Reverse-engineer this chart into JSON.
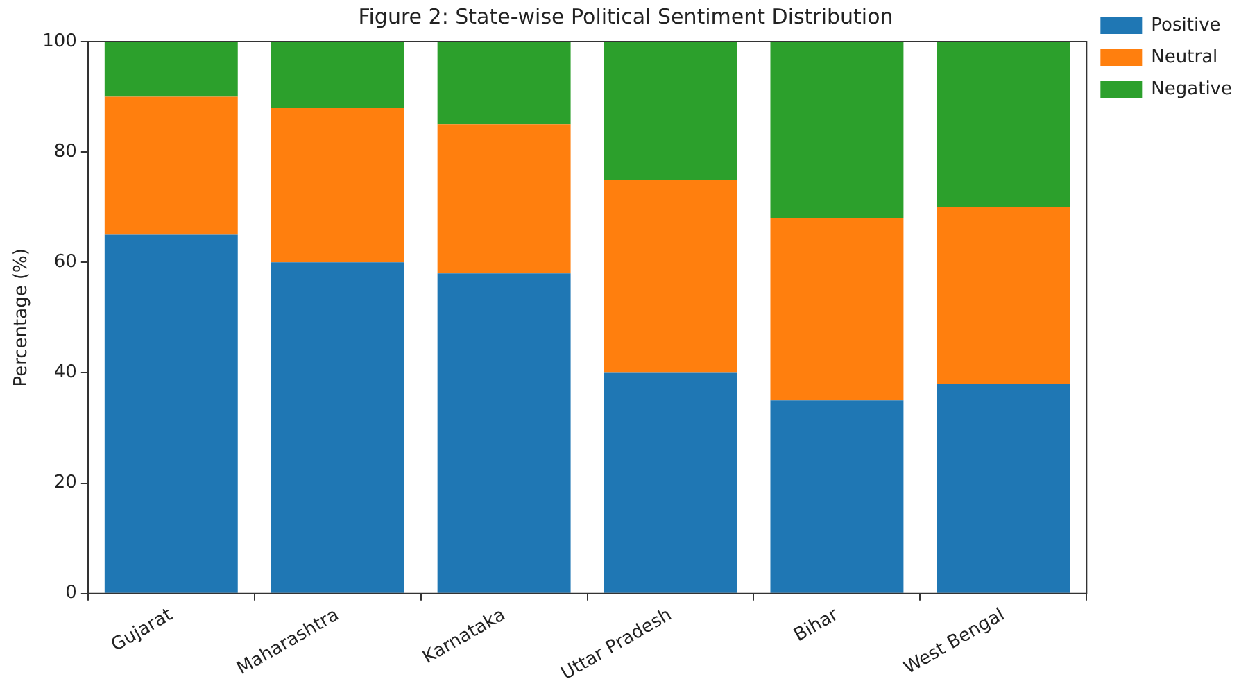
{
  "chart_data": {
    "type": "bar",
    "title": "Figure 2: State-wise Political Sentiment Distribution",
    "ylabel": "Percentage (%)",
    "categories": [
      "Gujarat",
      "Maharashtra",
      "Karnataka",
      "Uttar Pradesh",
      "Bihar",
      "West Bengal"
    ],
    "stacked": true,
    "series": [
      {
        "name": "Positive",
        "color": "#1f77b4",
        "values": [
          65,
          60,
          58,
          40,
          35,
          38
        ]
      },
      {
        "name": "Neutral",
        "color": "#ff7f0e",
        "values": [
          25,
          28,
          27,
          35,
          33,
          32
        ]
      },
      {
        "name": "Negative",
        "color": "#2ca02c",
        "values": [
          10,
          12,
          15,
          25,
          32,
          30
        ]
      }
    ],
    "ylim": [
      0,
      100
    ],
    "yticks": [
      0,
      20,
      40,
      60,
      80,
      100
    ],
    "grid": false,
    "legend": "top right"
  }
}
